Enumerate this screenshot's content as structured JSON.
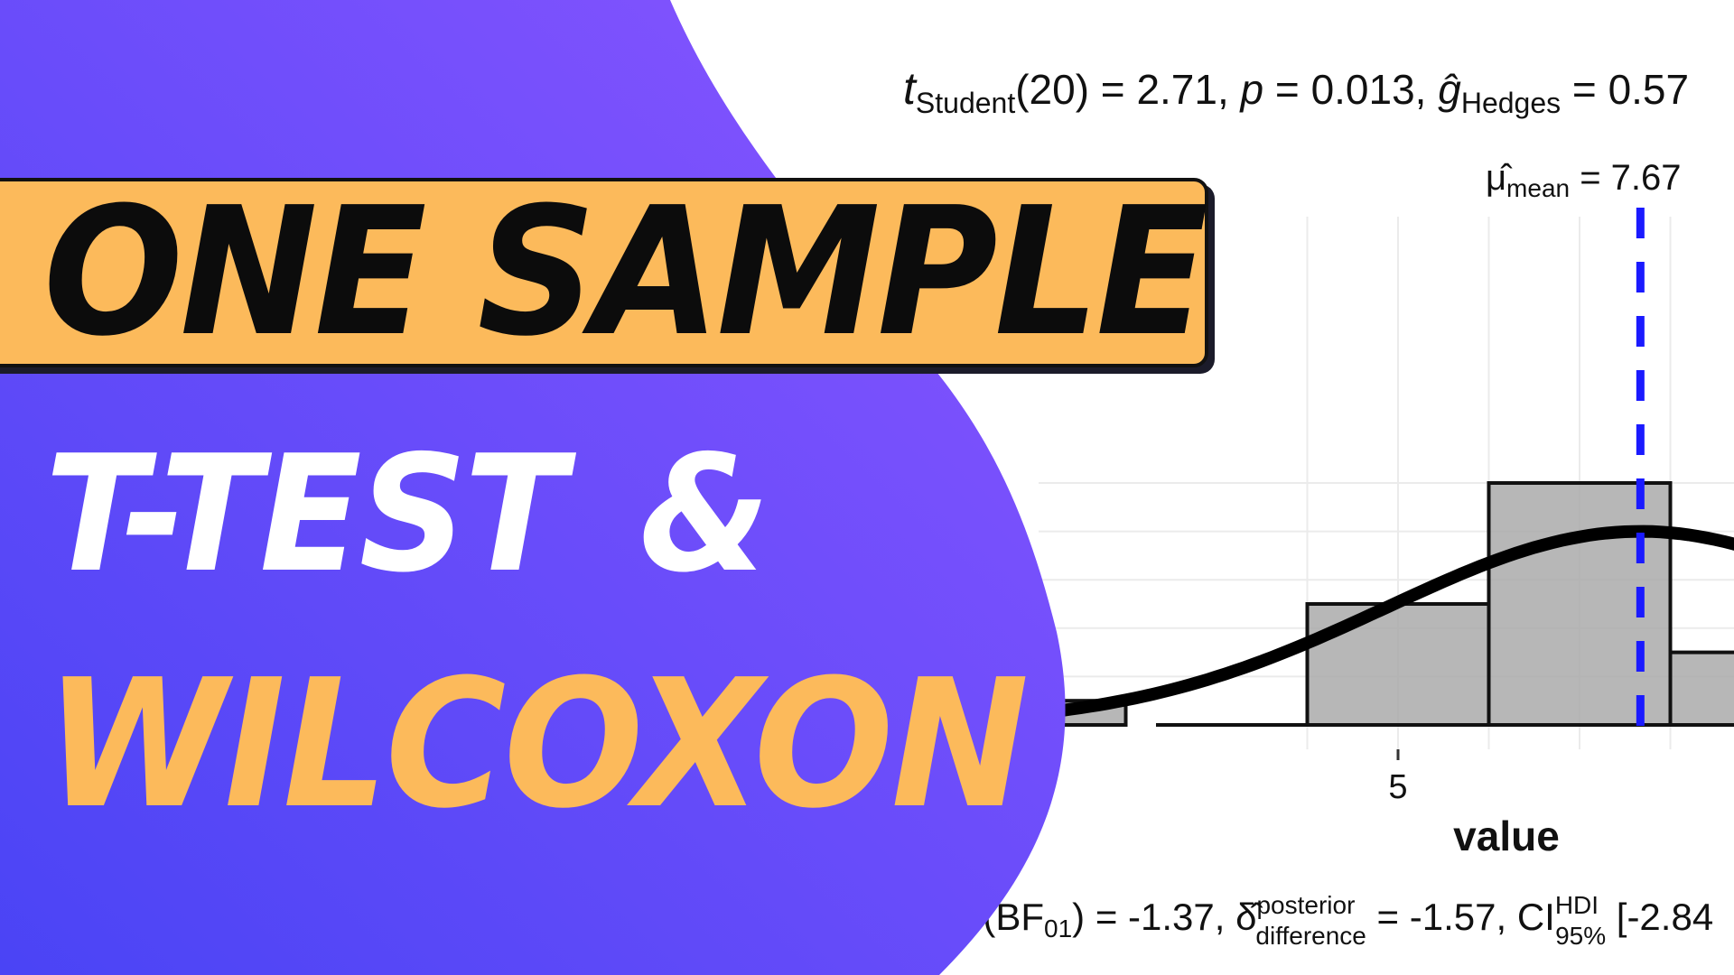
{
  "chart_data": {
    "type": "bar",
    "title": "",
    "xlabel": "value",
    "ylabel": "",
    "x_ticks": [
      "5"
    ],
    "bins": [
      {
        "from": 0.0,
        "to": 2.0,
        "count": 1
      },
      {
        "from": 4.0,
        "to": 6.0,
        "count": 5
      },
      {
        "from": 6.0,
        "to": 8.0,
        "count": 10
      },
      {
        "from": 8.0,
        "to": 10.0,
        "count": 3
      }
    ],
    "mean_line": {
      "x": 7.67,
      "label": "mean = 7.67",
      "color": "#1a1aff"
    },
    "normal_curve": {
      "mean": 7.67,
      "sd": 2.8,
      "peak": 8.0
    },
    "colors": {
      "bar_fill": "#aaaaaa",
      "bar_stroke": "#111111",
      "curve": "#000000"
    }
  },
  "stats": {
    "top": "t Student(20) = 2.71, p = 0.013, ĝ Hedges = 0.57",
    "bottom": "e(BF01) = -1.37, δ posterior difference = -1.57, CI HDI 95% [-2.84"
  },
  "thumbnail": {
    "title_line": "ONE SAMPLE",
    "line_one_a": "T-TEST",
    "line_one_b": "&",
    "line_two": "WILCOXON",
    "colors": {
      "banner": "#fcba5b",
      "gradient_start": "#4a44f5",
      "gradient_end": "#8a55ff",
      "accent_text": "#fcba5b"
    }
  }
}
